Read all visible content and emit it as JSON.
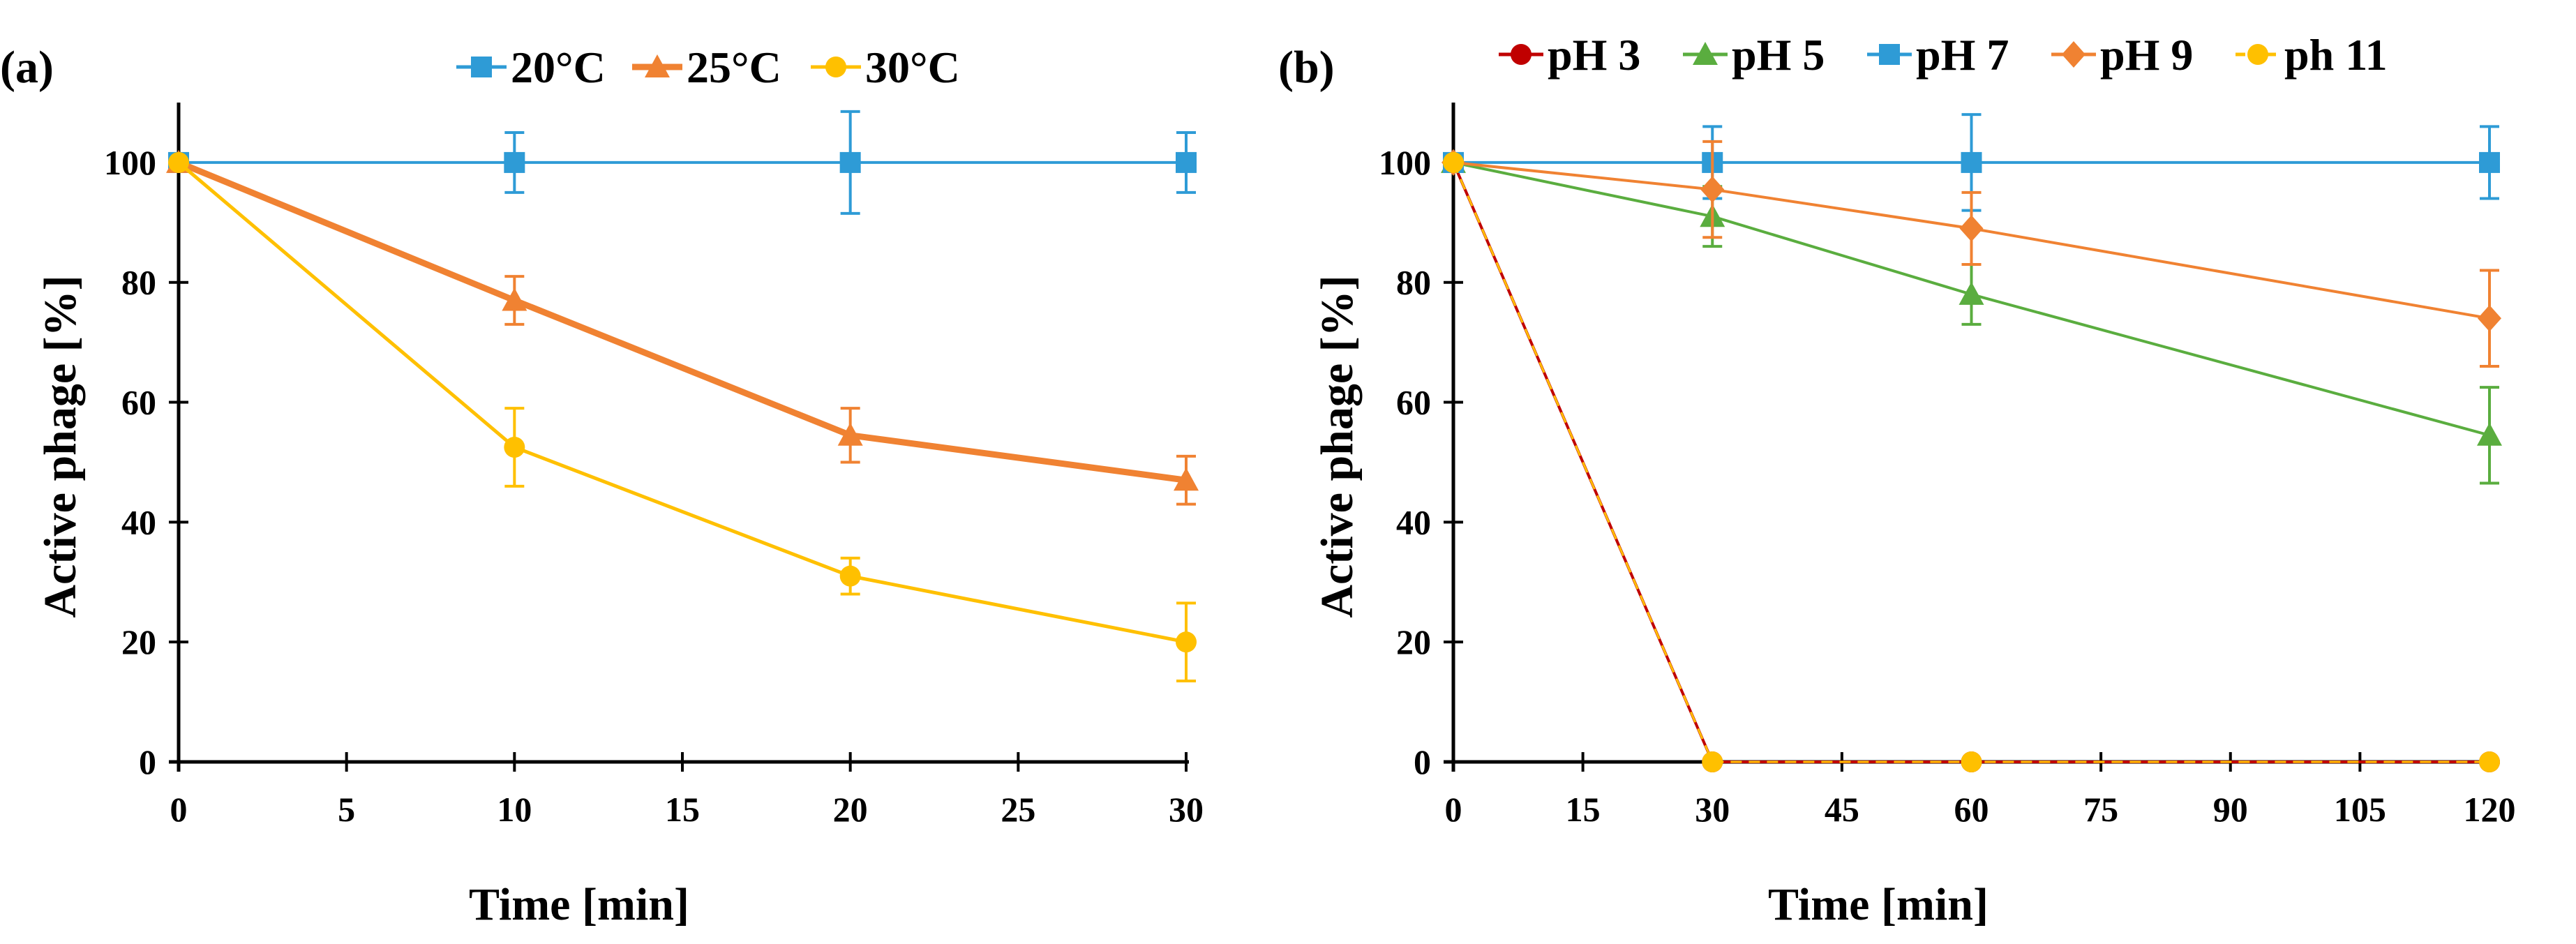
{
  "figure": {
    "panels": [
      {
        "label": "(a)"
      },
      {
        "label": "(b)"
      }
    ]
  },
  "chart_data": [
    {
      "type": "line",
      "panel": "(a)",
      "title": "",
      "xlabel": "Time [min]",
      "ylabel": "Active phage [%]",
      "xlim": [
        0,
        30
      ],
      "ylim": [
        0,
        110
      ],
      "xticks": [
        0,
        5,
        10,
        15,
        20,
        25,
        30
      ],
      "yticks": [
        0,
        20,
        40,
        60,
        80,
        100
      ],
      "legend_position": "top",
      "series": [
        {
          "name": "20°C",
          "color": "#2e9bd6",
          "marker": "square",
          "width": 4,
          "x": [
            0,
            10,
            20,
            30
          ],
          "y": [
            100,
            100,
            100,
            100
          ],
          "err": [
            0,
            5,
            8.5,
            5
          ]
        },
        {
          "name": "25°C",
          "color": "#f08232",
          "marker": "triangle",
          "width": 9,
          "x": [
            0,
            10,
            20,
            30
          ],
          "y": [
            100,
            77,
            54.5,
            47
          ],
          "err": [
            0,
            4,
            4.5,
            4
          ]
        },
        {
          "name": "30°C",
          "color": "#ffc000",
          "marker": "circle",
          "width": 5,
          "x": [
            0,
            10,
            20,
            30
          ],
          "y": [
            100,
            52.5,
            31,
            20
          ],
          "err": [
            0,
            6.5,
            3,
            6.5
          ]
        }
      ]
    },
    {
      "type": "line",
      "panel": "(b)",
      "title": "",
      "xlabel": "Time [min]",
      "ylabel": "Active phage [%]",
      "xlim": [
        0,
        120
      ],
      "ylim": [
        0,
        110
      ],
      "xticks": [
        0,
        15,
        30,
        45,
        60,
        75,
        90,
        105,
        120
      ],
      "yticks": [
        0,
        20,
        40,
        60,
        80,
        100
      ],
      "legend_position": "top",
      "series": [
        {
          "name": "pH 3",
          "color": "#c00000",
          "marker": "circle",
          "width": 4,
          "x": [
            0,
            30,
            60,
            120
          ],
          "y": [
            100,
            0,
            0,
            0
          ],
          "err": [
            0,
            0,
            0,
            0
          ]
        },
        {
          "name": "pH 5",
          "color": "#5aad3f",
          "marker": "triangle",
          "width": 4,
          "x": [
            0,
            30,
            60,
            120
          ],
          "y": [
            100,
            91,
            78,
            54.5
          ],
          "err": [
            0,
            5,
            5,
            8
          ]
        },
        {
          "name": "pH 7",
          "color": "#2e9bd6",
          "marker": "square",
          "width": 4,
          "x": [
            0,
            30,
            60,
            120
          ],
          "y": [
            100,
            100,
            100,
            100
          ],
          "err": [
            0,
            6,
            8,
            6
          ]
        },
        {
          "name": "pH 9",
          "color": "#f08232",
          "marker": "diamond",
          "width": 4,
          "x": [
            0,
            30,
            60,
            120
          ],
          "y": [
            100,
            95.5,
            89,
            74
          ],
          "err": [
            0,
            8,
            6,
            8
          ]
        },
        {
          "name": "ph 11",
          "color": "#ffc000",
          "marker": "circle",
          "width": 3,
          "dashed": true,
          "x": [
            0,
            30,
            60,
            120
          ],
          "y": [
            100,
            0,
            0,
            0
          ],
          "err": [
            0,
            0,
            0,
            0
          ]
        }
      ]
    }
  ]
}
